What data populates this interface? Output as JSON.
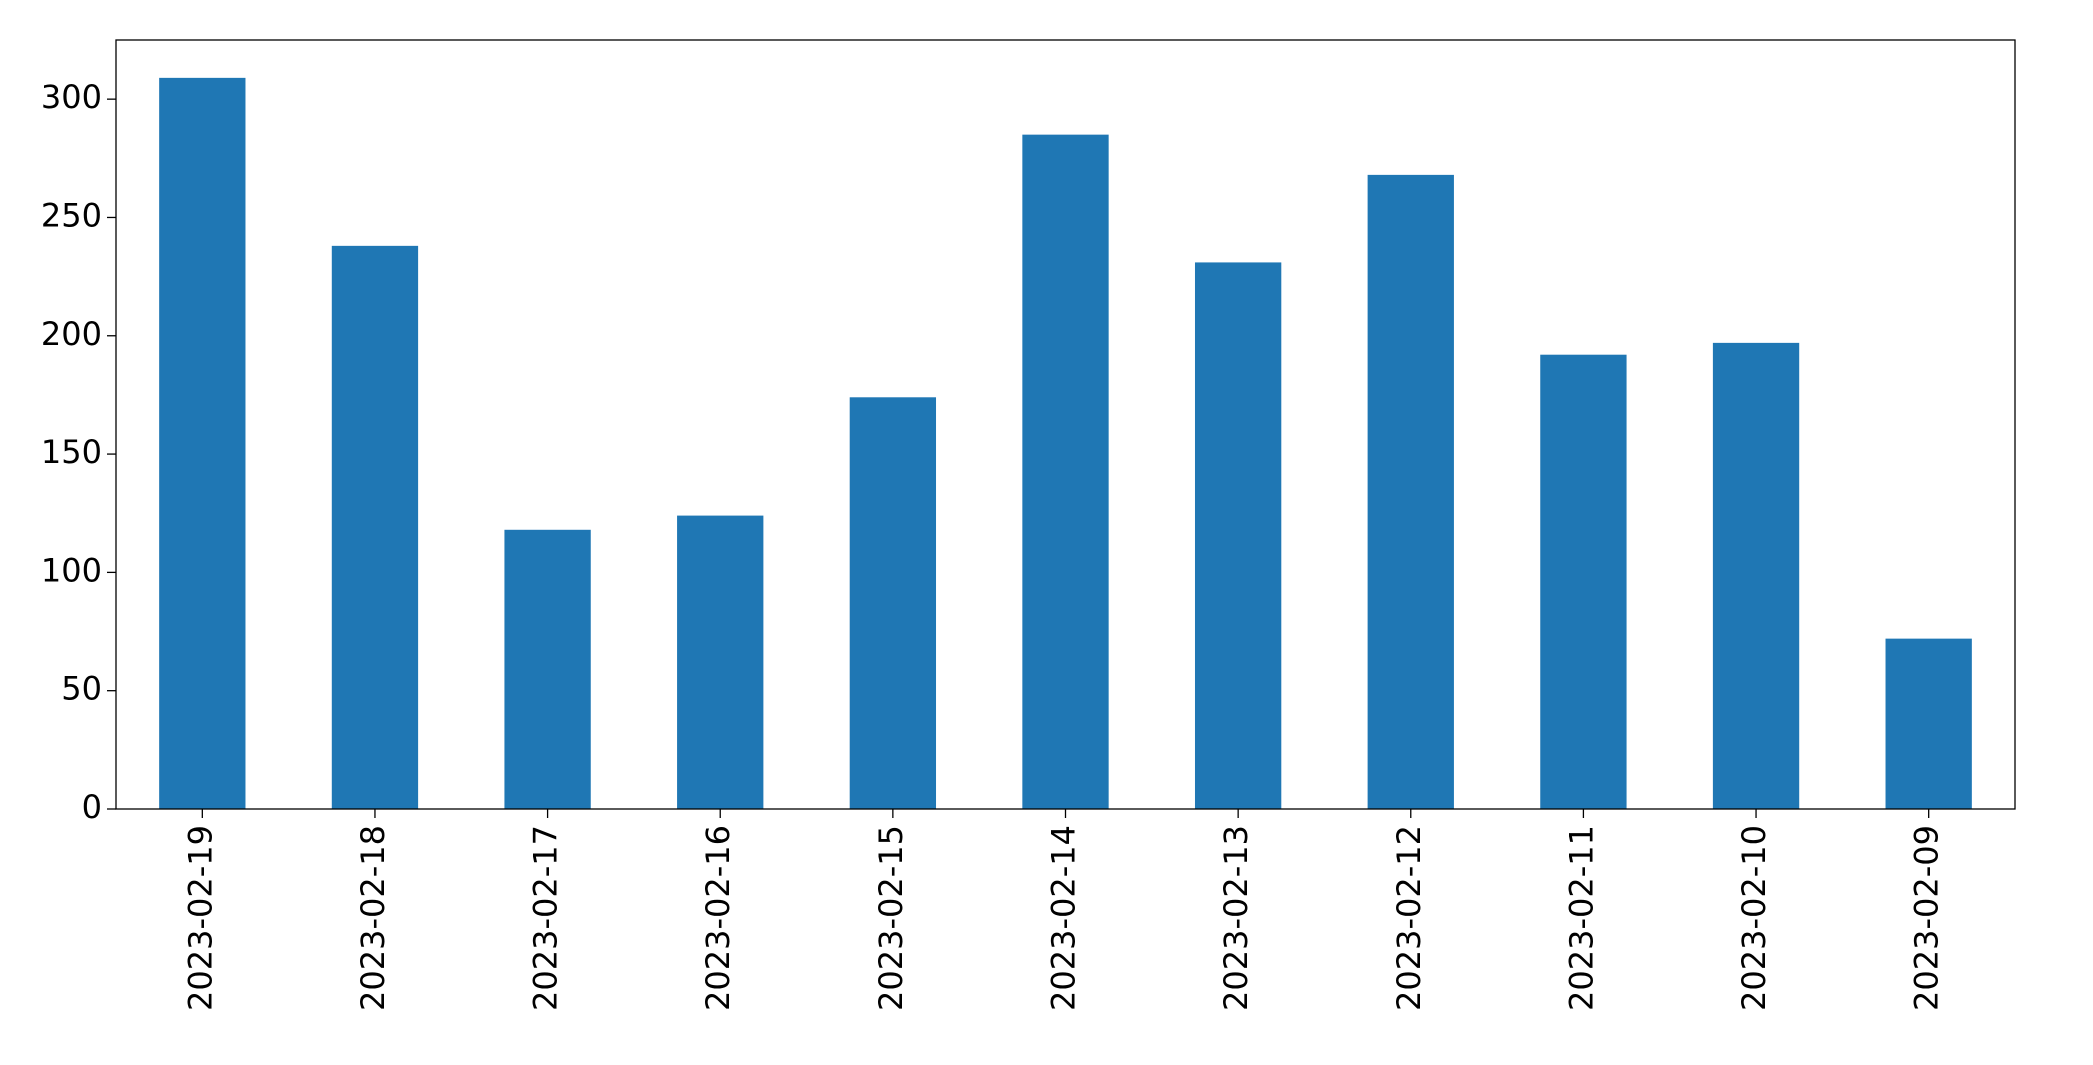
{
  "chart_data": {
    "type": "bar",
    "categories": [
      "2023-02-19",
      "2023-02-18",
      "2023-02-17",
      "2023-02-16",
      "2023-02-15",
      "2023-02-14",
      "2023-02-13",
      "2023-02-12",
      "2023-02-11",
      "2023-02-10",
      "2023-02-09"
    ],
    "values": [
      309,
      238,
      118,
      124,
      174,
      285,
      231,
      268,
      192,
      197,
      72
    ],
    "color": "#1f77b4",
    "ylim": [
      0,
      325
    ],
    "yticks": [
      0,
      50,
      100,
      150,
      200,
      250,
      300
    ],
    "grid": false
  }
}
